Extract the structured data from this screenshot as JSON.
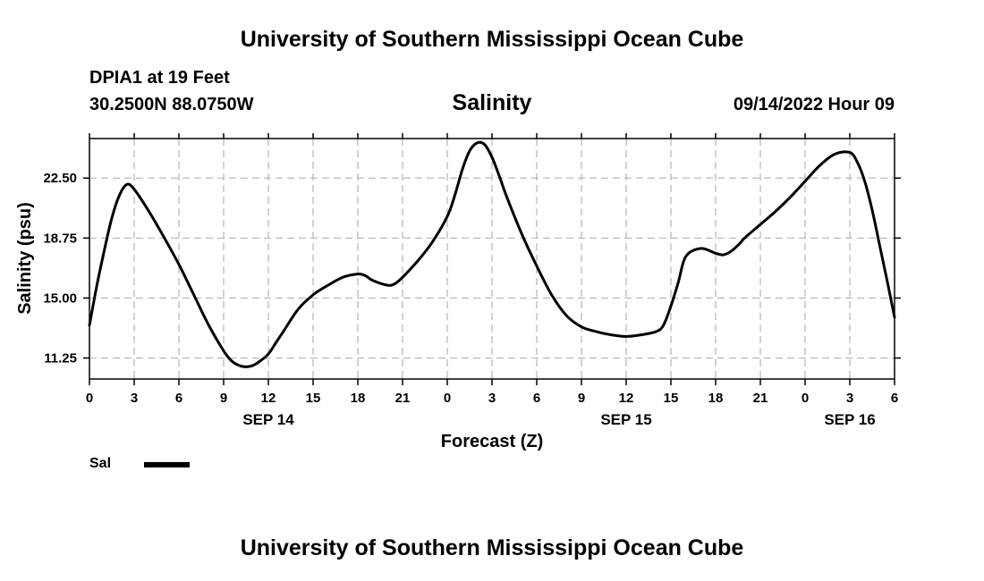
{
  "header": {
    "title": "University of Southern Mississippi Ocean Cube",
    "station": "DPIA1 at 19 Feet",
    "coordinates": "30.2500N  88.0750W",
    "datetime": "09/14/2022 Hour 09"
  },
  "footer": {
    "title": "University of Southern Mississippi Ocean Cube"
  },
  "legend": {
    "label": "Sal"
  },
  "colors": {
    "line": "#000000",
    "grid": "#b3b3b3",
    "background": "#ffffff"
  },
  "chart_data": {
    "type": "line",
    "title": "Salinity",
    "xlabel": "Forecast (Z)",
    "ylabel": "Salinity (psu)",
    "xlim": [
      0,
      54
    ],
    "ylim": [
      9.94,
      24.97
    ],
    "grid": true,
    "x_ticks": [
      0,
      3,
      6,
      9,
      12,
      15,
      18,
      21,
      24,
      27,
      30,
      33,
      36,
      39,
      42,
      45,
      48,
      51,
      54
    ],
    "x_tick_labels": [
      "0",
      "3",
      "6",
      "9",
      "12",
      "15",
      "18",
      "21",
      "0",
      "3",
      "6",
      "9",
      "12",
      "15",
      "18",
      "21",
      "0",
      "3",
      "6"
    ],
    "y_ticks": [
      11.25,
      15.0,
      18.75,
      22.5
    ],
    "y_tick_labels": [
      "11.25",
      "15.00",
      "18.75",
      "22.50"
    ],
    "date_labels": [
      {
        "x": 12,
        "label": "SEP 14"
      },
      {
        "x": 36,
        "label": "SEP 15"
      },
      {
        "x": 51,
        "label": "SEP 16"
      }
    ],
    "series": [
      {
        "name": "Sal",
        "x": [
          0,
          0.5,
          1,
          1.5,
          2,
          2.5,
          3,
          4,
          5,
          6,
          7,
          8,
          9,
          9.5,
          10,
          10.5,
          11,
          11.5,
          12,
          12.5,
          13,
          14,
          15,
          16,
          17,
          18,
          18.5,
          19,
          20,
          20.5,
          21,
          22,
          23,
          24,
          24.5,
          25,
          25.5,
          26,
          26.5,
          27,
          27.5,
          28,
          29,
          30,
          31,
          32,
          33,
          34,
          35,
          36,
          37,
          38,
          38.5,
          39,
          39.5,
          40,
          41,
          42,
          42.5,
          43,
          43.5,
          44,
          45,
          46,
          47,
          48,
          49,
          50,
          51,
          51.5,
          52,
          52.5,
          53,
          53.5,
          54
        ],
        "values": [
          13.3,
          15.8,
          18.0,
          20.0,
          21.4,
          22.1,
          21.8,
          20.4,
          18.8,
          17.1,
          15.2,
          13.3,
          11.7,
          11.1,
          10.8,
          10.7,
          10.8,
          11.1,
          11.5,
          12.2,
          12.9,
          14.3,
          15.2,
          15.8,
          16.3,
          16.5,
          16.4,
          16.1,
          15.8,
          15.9,
          16.3,
          17.3,
          18.5,
          20.1,
          21.4,
          23.0,
          24.2,
          24.7,
          24.6,
          23.8,
          22.6,
          21.3,
          19.0,
          17.0,
          15.2,
          13.9,
          13.2,
          12.9,
          12.7,
          12.6,
          12.7,
          12.9,
          13.3,
          14.5,
          16.0,
          17.6,
          18.1,
          17.8,
          17.7,
          17.9,
          18.3,
          18.8,
          19.6,
          20.4,
          21.3,
          22.3,
          23.3,
          24.0,
          24.1,
          23.5,
          22.3,
          20.5,
          18.3,
          16.1,
          13.8
        ]
      }
    ]
  }
}
